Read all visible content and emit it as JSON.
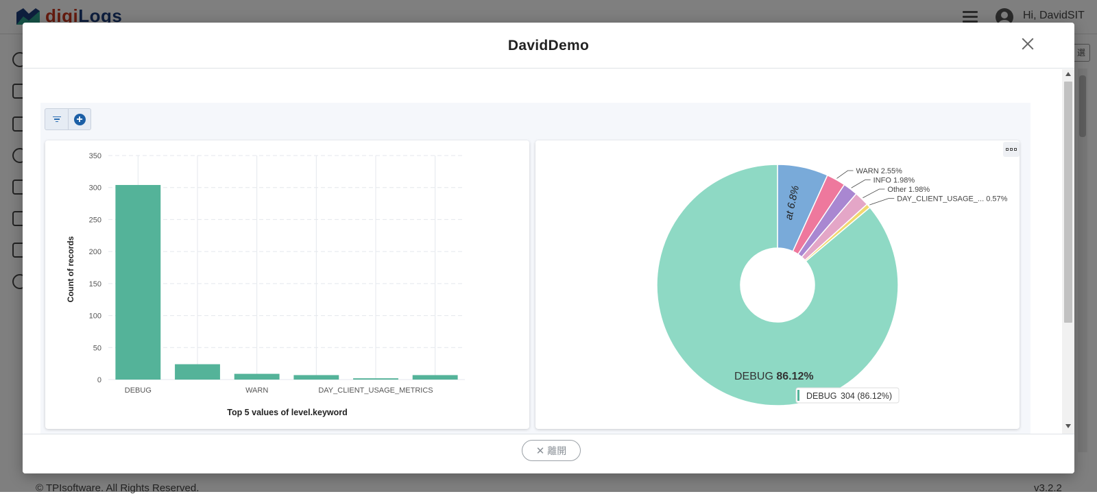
{
  "app": {
    "logo_text_a": "digi",
    "logo_text_b": "Logs",
    "user_greeting": "Hi, DavidSIT",
    "copyright": "© TPIsoftware. All Rights Reserved.",
    "version": "v3.2.2",
    "right_box_label": "選"
  },
  "modal": {
    "title": "DavidDemo",
    "footer_button_icon": "✕",
    "footer_button_label": "離開"
  },
  "toolbar": {
    "buttons": [
      {
        "icon": "filter-icon"
      },
      {
        "icon": "add-circle-icon"
      }
    ]
  },
  "bar_chart_colors": {
    "bar": "#54b399",
    "grid": "#e4e7ec"
  },
  "pie_colors": {
    "DEBUG": "#8ed9c4",
    "at": "#79aad9",
    "WARN": "#ee789d",
    "INFO": "#a987d1",
    "Other": "#e4a6c7",
    "DAY_CLIENT_USAGE_METRICS": "#f1d86f"
  },
  "chart_data": [
    {
      "type": "bar",
      "categories": [
        "DEBUG",
        "",
        "WARN",
        "",
        "DAY_CLIENT_USAGE_METRICS",
        ""
      ],
      "tick_labels": [
        "DEBUG",
        "",
        "WARN",
        "",
        "DAY_CLIENT_USAGE_METRICS",
        ""
      ],
      "values": [
        304,
        24,
        9,
        7,
        2,
        7
      ],
      "title": "",
      "xlabel": "Top 5 values of level.keyword",
      "ylabel": "Count of records",
      "ylim": [
        0,
        350
      ],
      "yticks": [
        0,
        50,
        100,
        150,
        200,
        250,
        300,
        350
      ],
      "grid": true
    },
    {
      "type": "pie",
      "donut": true,
      "slices": [
        {
          "label": "at",
          "display": "at 6.8%",
          "percent": 6.8
        },
        {
          "label": "WARN",
          "display": "WARN  2.55%",
          "percent": 2.55
        },
        {
          "label": "INFO",
          "display": "INFO  1.98%",
          "percent": 1.98
        },
        {
          "label": "Other",
          "display": "Other  1.98%",
          "percent": 1.98
        },
        {
          "label": "DAY_CLIENT_USAGE_METRICS",
          "display": "DAY_CLIENT_USAGE_...  0.57%",
          "percent": 0.57
        },
        {
          "label": "DEBUG",
          "display": "DEBUG",
          "display_value": "86.12%",
          "percent": 86.12
        }
      ],
      "tooltip": {
        "label": "DEBUG",
        "value": "304 (86.12%)"
      }
    }
  ]
}
